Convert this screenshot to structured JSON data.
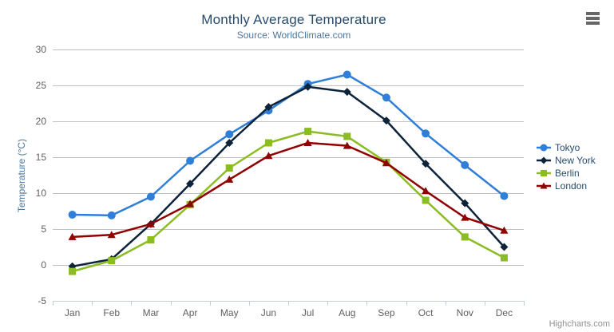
{
  "chart": {
    "menu_icon": "hamburger-export-menu",
    "credits_label": "Highcharts.com"
  },
  "chart_data": {
    "type": "line",
    "title": "Monthly Average Temperature",
    "subtitle": "Source: WorldClimate.com",
    "xlabel": "",
    "ylabel": "Temperature (°C)",
    "ylim": [
      -5,
      30
    ],
    "ytick_interval": 5,
    "grid": true,
    "legend_position": "right-middle",
    "categories": [
      "Jan",
      "Feb",
      "Mar",
      "Apr",
      "May",
      "Jun",
      "Jul",
      "Aug",
      "Sep",
      "Oct",
      "Nov",
      "Dec"
    ],
    "series": [
      {
        "name": "Tokyo",
        "color": "#2f7ed8",
        "marker": "circle",
        "values": [
          7.0,
          6.9,
          9.5,
          14.5,
          18.2,
          21.5,
          25.2,
          26.5,
          23.3,
          18.3,
          13.9,
          9.6
        ]
      },
      {
        "name": "New York",
        "color": "#0d233a",
        "marker": "diamond",
        "values": [
          -0.2,
          0.8,
          5.7,
          11.3,
          17.0,
          22.0,
          24.8,
          24.1,
          20.1,
          14.1,
          8.6,
          2.5
        ]
      },
      {
        "name": "Berlin",
        "color": "#8bbc21",
        "marker": "square",
        "values": [
          -0.9,
          0.6,
          3.5,
          8.4,
          13.5,
          17.0,
          18.6,
          17.9,
          14.3,
          9.0,
          3.9,
          1.0
        ]
      },
      {
        "name": "London",
        "color": "#910000",
        "marker": "triangle",
        "values": [
          3.9,
          4.2,
          5.7,
          8.5,
          11.9,
          15.2,
          17.0,
          16.6,
          14.2,
          10.3,
          6.6,
          4.8
        ]
      }
    ],
    "style_colors": {
      "grid_line": "#C0C0C0",
      "axis_line": "#C0D0E0",
      "tick_labels": "#606060",
      "title": "#274b6d",
      "subtitle": "#4d759e",
      "legend_text": "#274b6d",
      "credits": "#909090"
    }
  }
}
